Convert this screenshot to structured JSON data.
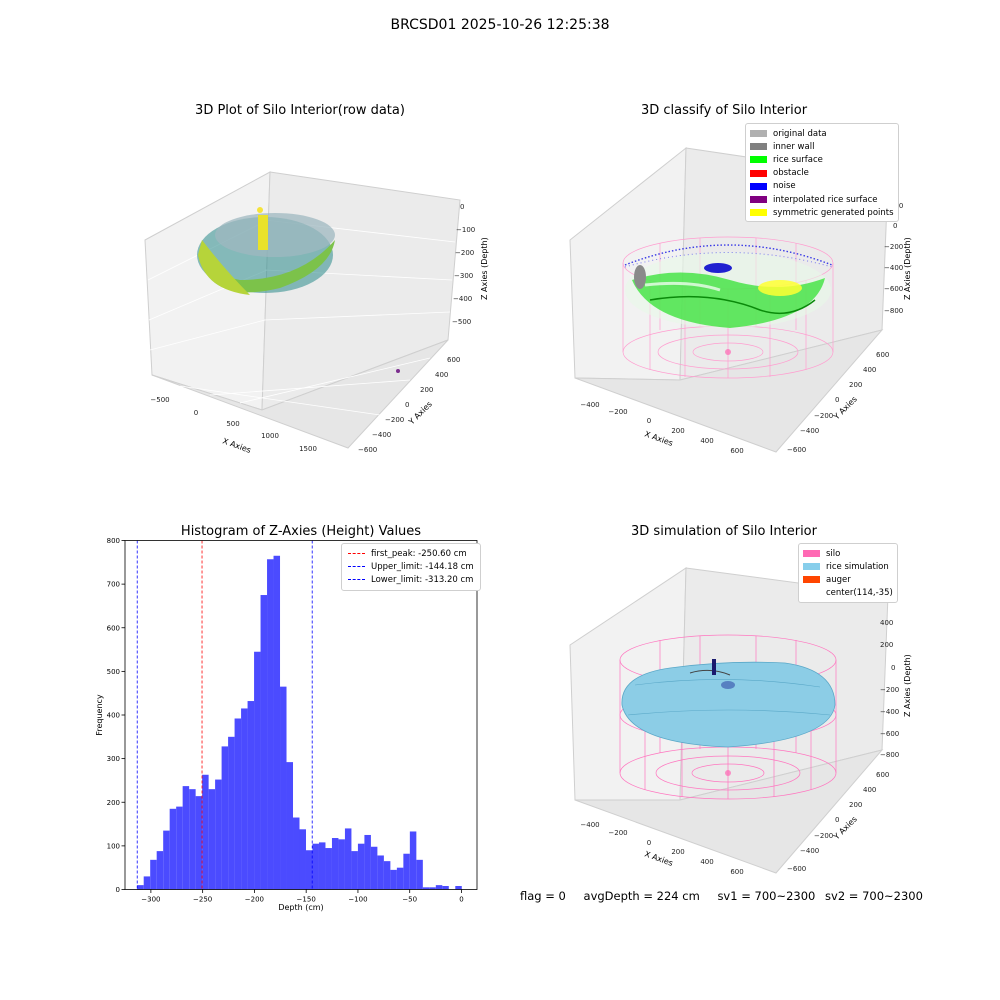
{
  "figure": {
    "suptitle": "BRCSD01 2025-10-26 12:25:38",
    "status": {
      "flag": "flag = 0",
      "avg_depth": "avgDepth = 224 cm",
      "sv1": "sv1 = 700~2300",
      "sv2": "sv2 = 700~2300"
    }
  },
  "panels": {
    "raw": {
      "title": "3D Plot of Silo Interior(row data)",
      "xlabel": "X Axies",
      "ylabel": "Y Axies",
      "zlabel": "Z Axies (Depth)",
      "xticks": [
        "−500",
        "0",
        "500",
        "1000",
        "1500"
      ],
      "yticks": [
        "600",
        "400",
        "200",
        "0",
        "−200",
        "−400",
        "−600"
      ],
      "zticks": [
        "0",
        "−100",
        "−200",
        "−300",
        "−400",
        "−500"
      ]
    },
    "classify": {
      "title": "3D classify of Silo Interior",
      "xlabel": "X Axies",
      "ylabel": "Y Axies",
      "zlabel": "Z Axies (Depth)",
      "xticks": [
        "−400",
        "−200",
        "0",
        "200",
        "400",
        "600"
      ],
      "yticks": [
        "600",
        "400",
        "200",
        "0",
        "−200",
        "−400",
        "−600"
      ],
      "zticks": [
        "200",
        "0",
        "−200",
        "−400",
        "−600",
        "−800"
      ],
      "legend": [
        {
          "label": "original data",
          "color": "#b0b0b0"
        },
        {
          "label": "inner wall",
          "color": "#808080"
        },
        {
          "label": "rice surface",
          "color": "#00ff00"
        },
        {
          "label": "obstacle",
          "color": "#ff0000"
        },
        {
          "label": "noise",
          "color": "#0000ff"
        },
        {
          "label": "interpolated rice surface",
          "color": "#800080"
        },
        {
          "label": "symmetric generated points",
          "color": "#ffff00"
        }
      ]
    },
    "simulation": {
      "title": "3D simulation of Silo Interior",
      "xlabel": "X Axies",
      "ylabel": "Y Axies",
      "zlabel": "Z Axies (Depth)",
      "xticks": [
        "−400",
        "−200",
        "0",
        "200",
        "400",
        "600"
      ],
      "yticks": [
        "600",
        "400",
        "200",
        "0",
        "−200",
        "−400",
        "−600"
      ],
      "zticks": [
        "400",
        "200",
        "0",
        "−200",
        "−400",
        "−600",
        "−800"
      ],
      "legend": [
        {
          "label": "silo",
          "color": "#ff69b4"
        },
        {
          "label": "rice simulation",
          "color": "#87ceeb"
        },
        {
          "label": "auger",
          "color": "#ff4500"
        },
        {
          "label": "center(114,-35)",
          "color": ""
        }
      ]
    }
  },
  "chart_data": {
    "type": "bar",
    "title": "Histogram of Z-Axies (Height) Values",
    "xlabel": "Depth (cm)",
    "ylabel": "Frequency",
    "xlim": [
      -325,
      15
    ],
    "ylim": [
      0,
      800
    ],
    "xticks": [
      "−300",
      "−250",
      "−200",
      "−150",
      "−100",
      "−50",
      "0"
    ],
    "yticks": [
      "0",
      "100",
      "200",
      "300",
      "400",
      "500",
      "600",
      "700",
      "800"
    ],
    "bin_start": -313.2,
    "bin_width": 6.27,
    "values": [
      10,
      30,
      68,
      88,
      135,
      185,
      190,
      237,
      230,
      214,
      263,
      230,
      252,
      328,
      350,
      392,
      415,
      432,
      545,
      675,
      757,
      765,
      465,
      292,
      165,
      138,
      90,
      105,
      108,
      95,
      118,
      115,
      140,
      88,
      105,
      125,
      98,
      78,
      65,
      45,
      50,
      82,
      133,
      68,
      5,
      5,
      10,
      8,
      0,
      8
    ],
    "bar_color": "#4b4bff",
    "lines": [
      {
        "label": "first_peak: -250.60 cm",
        "x": -250.6,
        "color": "#ff0000"
      },
      {
        "label": "Upper_limit: -144.18 cm",
        "x": -144.18,
        "color": "#0000ff"
      },
      {
        "label": "Lower_limit: -313.20 cm",
        "x": -313.2,
        "color": "#0000ff"
      }
    ],
    "legend_position": "top-right"
  }
}
